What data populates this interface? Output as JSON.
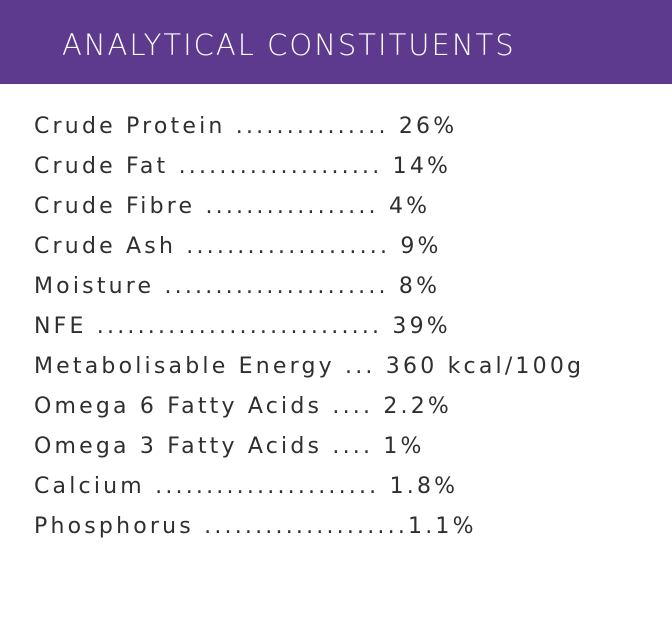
{
  "header": {
    "title": "ANALYTICAL CONSTITUENTS"
  },
  "constituents": [
    "Crude Protein ............... 26%",
    "Crude Fat .................... 14%",
    "Crude Fibre ................. 4%",
    "Crude Ash .................... 9%",
    "Moisture ...................... 8%",
    "NFE ............................ 39%",
    "Metabolisable Energy ... 360 kcal/100g",
    "Omega 6 Fatty Acids .... 2.2%",
    "Omega 3 Fatty Acids .... 1%",
    "Calcium ...................... 1.8%",
    "Phosphorus ....................1.1%"
  ],
  "colors": {
    "banner": "#5e3a8f",
    "banner_text": "#ffffff",
    "body_text": "#2f2f2f"
  }
}
